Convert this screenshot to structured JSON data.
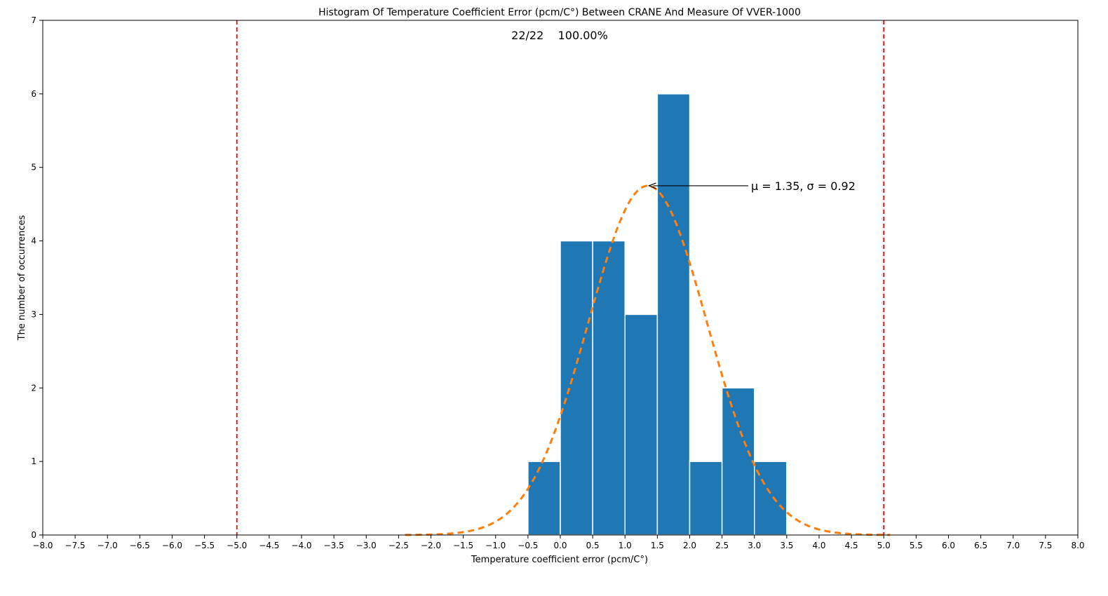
{
  "chart_data": {
    "type": "bar",
    "title": "Histogram Of Temperature Coefficient Error (pcm/C°) Between CRANE And Measure Of VVER-1000",
    "xlabel": "Temperature coefficient error (pcm/C°)",
    "ylabel": "The number of occurrences",
    "summary_annotation": "22/22    100.00%",
    "fit_annotation": "μ = 1.35, σ = 0.92",
    "fit": {
      "mu": 1.35,
      "sigma": 0.92,
      "peak": 4.75,
      "x_range": [
        -2.4,
        5.1
      ]
    },
    "xlim": [
      -8.0,
      8.0
    ],
    "ylim": [
      0,
      7
    ],
    "x_ticks": [
      "−8.0",
      "−7.5",
      "−7.0",
      "−6.5",
      "−6.0",
      "−5.5",
      "−5.0",
      "−4.5",
      "−4.0",
      "−3.5",
      "−3.0",
      "−2.5",
      "−2.0",
      "−1.5",
      "−1.0",
      "−0.5",
      "0.0",
      "0.5",
      "1.0",
      "1.5",
      "2.0",
      "2.5",
      "3.0",
      "3.5",
      "4.0",
      "4.5",
      "5.0",
      "5.5",
      "6.0",
      "6.5",
      "7.0",
      "7.5",
      "8.0"
    ],
    "y_ticks": [
      "0",
      "1",
      "2",
      "3",
      "4",
      "5",
      "6",
      "7"
    ],
    "bins": [
      {
        "x0": -0.5,
        "x1": 0.0,
        "count": 1
      },
      {
        "x0": 0.0,
        "x1": 0.5,
        "count": 4
      },
      {
        "x0": 0.5,
        "x1": 1.0,
        "count": 4
      },
      {
        "x0": 1.0,
        "x1": 1.5,
        "count": 3
      },
      {
        "x0": 1.5,
        "x1": 2.0,
        "count": 6
      },
      {
        "x0": 2.0,
        "x1": 2.5,
        "count": 1
      },
      {
        "x0": 2.5,
        "x1": 3.0,
        "count": 2
      },
      {
        "x0": 3.0,
        "x1": 3.5,
        "count": 1
      }
    ],
    "limit_lines": [
      -5.0,
      5.0
    ],
    "grid": false,
    "colors": {
      "bar": "#1f77b4",
      "fit": "#ff7f0e",
      "limit": "#ff0000",
      "axis": "#000000"
    }
  }
}
